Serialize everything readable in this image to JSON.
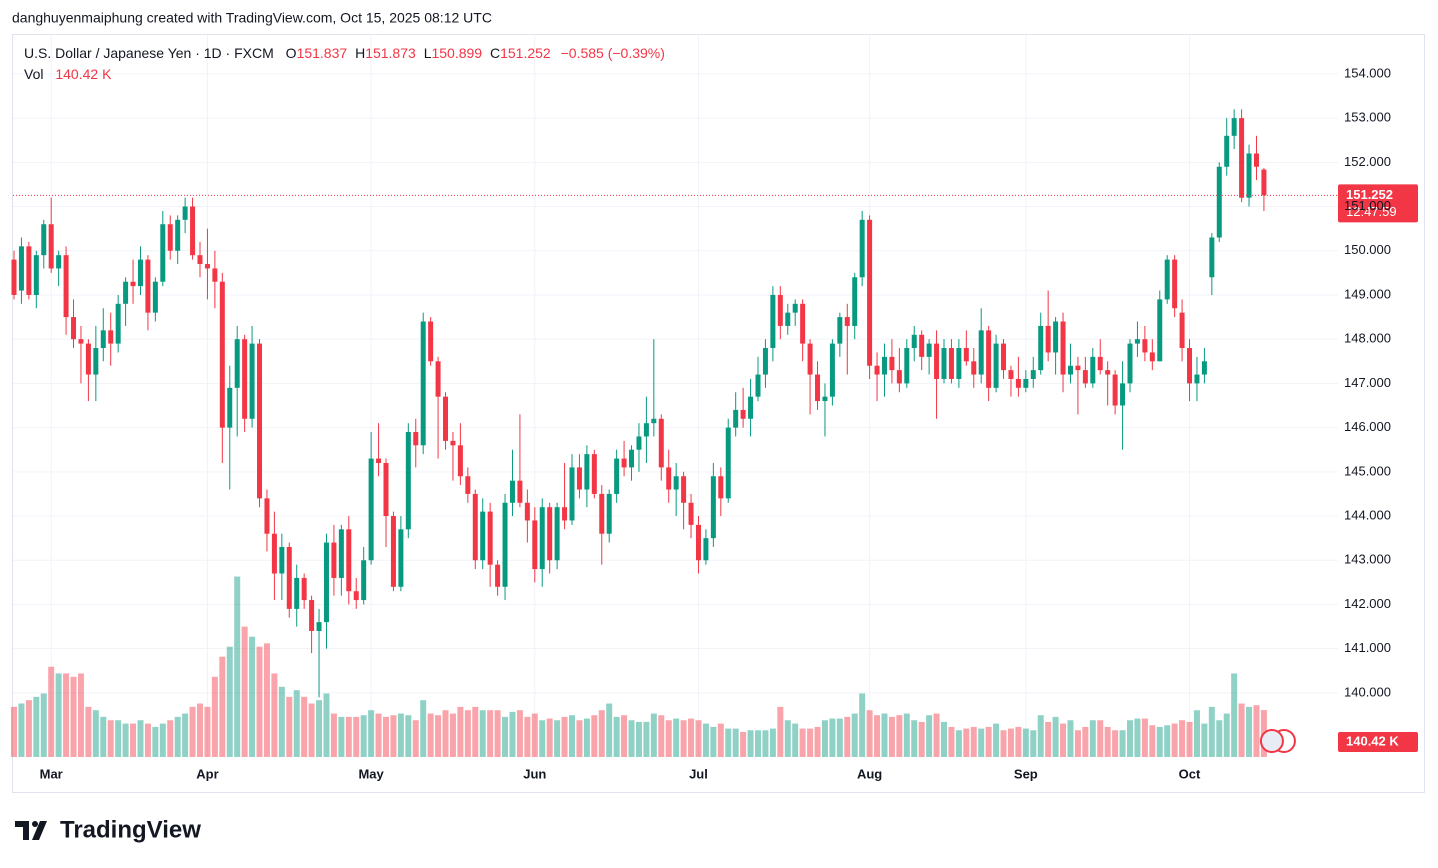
{
  "chart_data": {
    "type": "candlestick",
    "credit": "danghuyenmaiphung created with TradingView.com, Oct 15, 2025 08:12 UTC",
    "title": "U.S. Dollar / Japanese Yen · 1D · FXCM",
    "legend_keys": [
      "O",
      "H",
      "L",
      "C"
    ],
    "change": "−0.585 (−0.39%)",
    "volume_title": "Vol",
    "volume_label": "140.42 K",
    "countdown": "12:47:59",
    "logo": "TradingView",
    "up_color": "#089981",
    "down_color": "#f23645",
    "grid": true,
    "ylim": [
      138.55,
      154.88
    ],
    "yticks": [
      {
        "value": 140,
        "label": "140.000"
      },
      {
        "value": 141,
        "label": "141.000"
      },
      {
        "value": 142,
        "label": "142.000"
      },
      {
        "value": 143,
        "label": "143.000"
      },
      {
        "value": 144,
        "label": "144.000"
      },
      {
        "value": 145,
        "label": "145.000"
      },
      {
        "value": 146,
        "label": "146.000"
      },
      {
        "value": 147,
        "label": "147.000"
      },
      {
        "value": 148,
        "label": "148.000"
      },
      {
        "value": 149,
        "label": "149.000"
      },
      {
        "value": 150,
        "label": "150.000"
      },
      {
        "value": 151,
        "label": "151.000"
      },
      {
        "value": 152,
        "label": "152.000"
      },
      {
        "value": 153,
        "label": "153.000"
      },
      {
        "value": 154,
        "label": "154.000"
      }
    ],
    "volume_lim": [
      0,
      2160
    ],
    "categories": [
      null,
      null,
      null,
      null,
      null,
      "Mar",
      null,
      null,
      null,
      null,
      null,
      null,
      null,
      null,
      null,
      null,
      null,
      null,
      null,
      null,
      null,
      null,
      null,
      null,
      null,
      null,
      "Apr",
      null,
      null,
      null,
      null,
      null,
      null,
      null,
      null,
      null,
      null,
      null,
      null,
      null,
      null,
      null,
      null,
      null,
      null,
      null,
      null,
      null,
      "May",
      null,
      null,
      null,
      null,
      null,
      null,
      null,
      null,
      null,
      null,
      null,
      null,
      null,
      null,
      null,
      null,
      null,
      null,
      null,
      null,
      null,
      "Jun",
      null,
      null,
      null,
      null,
      null,
      null,
      null,
      null,
      null,
      null,
      null,
      null,
      null,
      null,
      null,
      null,
      null,
      null,
      null,
      null,
      null,
      "Jul",
      null,
      null,
      null,
      null,
      null,
      null,
      null,
      null,
      null,
      null,
      null,
      null,
      null,
      null,
      null,
      null,
      null,
      null,
      null,
      null,
      null,
      null,
      "Aug",
      null,
      null,
      null,
      null,
      null,
      null,
      null,
      null,
      null,
      null,
      null,
      null,
      null,
      null,
      null,
      null,
      null,
      null,
      null,
      null,
      "Sep",
      null,
      null,
      null,
      null,
      null,
      null,
      null,
      null,
      null,
      null,
      null,
      null,
      null,
      null,
      null,
      null,
      null,
      null,
      null,
      null,
      null,
      "Oct",
      null,
      null,
      null,
      null,
      null,
      null,
      null,
      null,
      null,
      null
    ],
    "ohlc": [
      [
        149.8,
        150.0,
        148.9,
        149.0
      ],
      [
        149.1,
        150.3,
        148.8,
        150.1
      ],
      [
        150.1,
        150.2,
        148.9,
        149.0
      ],
      [
        149.0,
        150.0,
        148.7,
        149.9
      ],
      [
        149.9,
        150.7,
        149.6,
        150.6
      ],
      [
        150.6,
        151.2,
        149.5,
        149.6
      ],
      [
        149.6,
        150.0,
        149.2,
        149.9
      ],
      [
        149.9,
        150.1,
        148.1,
        148.5
      ],
      [
        148.5,
        148.9,
        147.8,
        148.0
      ],
      [
        148.0,
        148.3,
        147.0,
        147.9
      ],
      [
        147.9,
        148.0,
        146.6,
        147.2
      ],
      [
        147.2,
        148.3,
        146.6,
        147.8
      ],
      [
        147.8,
        148.7,
        147.5,
        148.2
      ],
      [
        148.2,
        148.6,
        147.4,
        147.9
      ],
      [
        147.9,
        149.0,
        147.7,
        148.8
      ],
      [
        148.8,
        149.4,
        148.3,
        149.3
      ],
      [
        149.3,
        149.8,
        148.8,
        149.2
      ],
      [
        149.2,
        150.1,
        149.0,
        149.8
      ],
      [
        149.8,
        149.9,
        148.2,
        148.6
      ],
      [
        148.6,
        149.4,
        148.4,
        149.3
      ],
      [
        149.3,
        150.9,
        149.2,
        150.6
      ],
      [
        150.6,
        150.8,
        149.8,
        150.0
      ],
      [
        150.0,
        150.8,
        149.7,
        150.7
      ],
      [
        150.7,
        151.2,
        150.4,
        151.0
      ],
      [
        151.0,
        151.2,
        149.8,
        149.9
      ],
      [
        149.9,
        150.2,
        149.4,
        149.7
      ],
      [
        149.7,
        150.5,
        148.9,
        149.6
      ],
      [
        149.6,
        150.0,
        148.7,
        149.3
      ],
      [
        149.3,
        149.5,
        145.2,
        146.0
      ],
      [
        146.0,
        147.4,
        144.6,
        146.9
      ],
      [
        146.9,
        148.3,
        145.8,
        148.0
      ],
      [
        148.0,
        148.1,
        145.9,
        146.2
      ],
      [
        146.2,
        148.3,
        146.0,
        147.9
      ],
      [
        147.9,
        148.0,
        144.2,
        144.4
      ],
      [
        144.4,
        144.6,
        143.2,
        143.6
      ],
      [
        143.6,
        144.1,
        142.1,
        142.7
      ],
      [
        142.7,
        143.6,
        142.1,
        143.3
      ],
      [
        143.3,
        143.4,
        141.7,
        141.9
      ],
      [
        141.9,
        142.9,
        141.5,
        142.6
      ],
      [
        142.6,
        142.7,
        141.9,
        142.1
      ],
      [
        142.1,
        142.2,
        140.9,
        141.4
      ],
      [
        141.4,
        141.9,
        139.9,
        141.6
      ],
      [
        141.6,
        143.6,
        141.0,
        143.4
      ],
      [
        143.4,
        143.8,
        142.2,
        142.6
      ],
      [
        142.6,
        143.8,
        142.2,
        143.7
      ],
      [
        143.7,
        144.0,
        142.0,
        142.3
      ],
      [
        142.3,
        142.6,
        141.9,
        142.1
      ],
      [
        142.1,
        143.3,
        142.0,
        143.0
      ],
      [
        143.0,
        145.9,
        142.9,
        145.3
      ],
      [
        145.3,
        146.1,
        144.9,
        145.2
      ],
      [
        145.2,
        145.3,
        143.3,
        144.0
      ],
      [
        144.0,
        144.1,
        142.3,
        142.4
      ],
      [
        142.4,
        144.0,
        142.3,
        143.7
      ],
      [
        143.7,
        146.1,
        143.5,
        145.9
      ],
      [
        145.9,
        146.2,
        145.1,
        145.6
      ],
      [
        145.6,
        148.6,
        145.4,
        148.4
      ],
      [
        148.4,
        148.5,
        147.4,
        147.5
      ],
      [
        147.5,
        147.6,
        145.3,
        146.7
      ],
      [
        146.7,
        146.8,
        145.5,
        145.7
      ],
      [
        145.7,
        145.9,
        144.8,
        145.6
      ],
      [
        145.6,
        146.1,
        144.7,
        144.9
      ],
      [
        144.9,
        145.1,
        144.3,
        144.5
      ],
      [
        144.5,
        144.6,
        142.8,
        143.0
      ],
      [
        143.0,
        144.4,
        142.8,
        144.1
      ],
      [
        144.1,
        144.3,
        142.4,
        142.9
      ],
      [
        142.9,
        143.0,
        142.2,
        142.4
      ],
      [
        142.4,
        144.5,
        142.1,
        144.3
      ],
      [
        144.3,
        145.5,
        144.0,
        144.8
      ],
      [
        144.8,
        146.3,
        144.2,
        144.3
      ],
      [
        144.3,
        144.6,
        143.4,
        143.9
      ],
      [
        143.9,
        144.2,
        142.5,
        142.8
      ],
      [
        142.8,
        144.4,
        142.4,
        144.2
      ],
      [
        144.2,
        144.3,
        142.7,
        143.0
      ],
      [
        143.0,
        144.3,
        142.8,
        144.2
      ],
      [
        144.2,
        145.2,
        143.7,
        143.9
      ],
      [
        143.9,
        145.4,
        143.8,
        145.1
      ],
      [
        145.1,
        145.4,
        144.4,
        144.6
      ],
      [
        144.6,
        145.6,
        144.2,
        145.4
      ],
      [
        145.4,
        145.5,
        144.4,
        144.5
      ],
      [
        144.5,
        144.7,
        142.9,
        143.6
      ],
      [
        143.6,
        144.6,
        143.4,
        144.5
      ],
      [
        144.5,
        145.5,
        144.3,
        145.3
      ],
      [
        145.3,
        145.7,
        144.9,
        145.1
      ],
      [
        145.1,
        145.6,
        144.8,
        145.5
      ],
      [
        145.5,
        146.1,
        145.0,
        145.8
      ],
      [
        145.8,
        146.7,
        145.2,
        146.1
      ],
      [
        146.1,
        148.0,
        145.8,
        146.2
      ],
      [
        146.2,
        146.3,
        144.8,
        145.1
      ],
      [
        145.1,
        145.5,
        144.3,
        144.6
      ],
      [
        144.6,
        145.2,
        144.0,
        144.9
      ],
      [
        144.9,
        145.0,
        143.7,
        144.3
      ],
      [
        144.3,
        144.5,
        143.5,
        143.8
      ],
      [
        143.8,
        144.0,
        142.7,
        143.0
      ],
      [
        143.0,
        143.7,
        142.9,
        143.5
      ],
      [
        143.5,
        145.2,
        143.3,
        144.9
      ],
      [
        144.9,
        145.1,
        144.0,
        144.4
      ],
      [
        144.4,
        146.2,
        144.3,
        146.0
      ],
      [
        146.0,
        146.8,
        145.8,
        146.4
      ],
      [
        146.4,
        146.9,
        146.0,
        146.2
      ],
      [
        146.2,
        147.1,
        145.8,
        146.7
      ],
      [
        146.7,
        147.6,
        146.6,
        147.2
      ],
      [
        147.2,
        148.0,
        146.9,
        147.8
      ],
      [
        147.8,
        149.2,
        147.5,
        149.0
      ],
      [
        149.0,
        149.2,
        148.0,
        148.3
      ],
      [
        148.3,
        148.8,
        148.1,
        148.6
      ],
      [
        148.6,
        148.9,
        148.3,
        148.8
      ],
      [
        148.8,
        148.9,
        147.5,
        147.9
      ],
      [
        147.9,
        148.0,
        146.3,
        147.2
      ],
      [
        147.2,
        147.5,
        146.4,
        146.6
      ],
      [
        146.6,
        147.0,
        145.8,
        146.7
      ],
      [
        146.7,
        148.0,
        146.5,
        147.9
      ],
      [
        147.9,
        148.6,
        147.6,
        148.5
      ],
      [
        148.5,
        148.8,
        147.2,
        148.3
      ],
      [
        148.3,
        149.5,
        148.0,
        149.4
      ],
      [
        149.4,
        150.9,
        149.2,
        150.7
      ],
      [
        150.7,
        150.8,
        147.1,
        147.4
      ],
      [
        147.4,
        147.7,
        146.6,
        147.2
      ],
      [
        147.2,
        147.9,
        146.7,
        147.6
      ],
      [
        147.6,
        148.0,
        147.0,
        147.3
      ],
      [
        147.3,
        147.8,
        146.8,
        147.0
      ],
      [
        147.0,
        148.0,
        146.9,
        147.8
      ],
      [
        147.8,
        148.3,
        147.5,
        148.1
      ],
      [
        148.1,
        148.2,
        147.3,
        147.6
      ],
      [
        147.6,
        148.0,
        147.2,
        147.9
      ],
      [
        147.9,
        148.2,
        146.2,
        147.1
      ],
      [
        147.1,
        148.0,
        147.0,
        147.8
      ],
      [
        147.8,
        148.0,
        147.0,
        147.1
      ],
      [
        147.1,
        148.0,
        146.9,
        147.8
      ],
      [
        147.8,
        148.2,
        147.4,
        147.5
      ],
      [
        147.5,
        147.8,
        146.9,
        147.2
      ],
      [
        147.2,
        148.7,
        147.0,
        148.2
      ],
      [
        148.2,
        148.3,
        146.6,
        146.9
      ],
      [
        146.9,
        148.1,
        146.8,
        147.9
      ],
      [
        147.9,
        148.0,
        147.1,
        147.3
      ],
      [
        147.3,
        147.4,
        146.7,
        147.1
      ],
      [
        147.1,
        147.6,
        146.7,
        146.9
      ],
      [
        146.9,
        147.3,
        146.8,
        147.1
      ],
      [
        147.1,
        147.6,
        146.9,
        147.3
      ],
      [
        147.3,
        148.6,
        147.2,
        148.3
      ],
      [
        148.3,
        149.1,
        147.5,
        147.7
      ],
      [
        147.7,
        148.5,
        147.2,
        148.4
      ],
      [
        148.4,
        148.6,
        146.8,
        147.2
      ],
      [
        147.2,
        147.9,
        147.0,
        147.4
      ],
      [
        147.4,
        147.6,
        146.3,
        147.3
      ],
      [
        147.3,
        147.6,
        146.9,
        147.0
      ],
      [
        147.0,
        147.8,
        146.9,
        147.6
      ],
      [
        147.6,
        148.0,
        147.2,
        147.3
      ],
      [
        147.3,
        147.5,
        146.5,
        147.2
      ],
      [
        147.2,
        147.3,
        146.3,
        146.5
      ],
      [
        146.5,
        147.5,
        145.5,
        147.0
      ],
      [
        147.0,
        148.0,
        146.8,
        147.9
      ],
      [
        147.9,
        148.4,
        147.6,
        148.0
      ],
      [
        148.0,
        148.3,
        147.5,
        147.7
      ],
      [
        147.7,
        148.0,
        147.3,
        147.5
      ],
      [
        147.5,
        149.1,
        147.5,
        148.9
      ],
      [
        148.9,
        149.9,
        148.8,
        149.8
      ],
      [
        149.8,
        149.9,
        148.5,
        148.7
      ],
      [
        148.6,
        148.9,
        147.5,
        147.8
      ],
      [
        147.8,
        148.0,
        146.6,
        147.0
      ],
      [
        147.0,
        147.6,
        146.6,
        147.2
      ],
      [
        147.2,
        147.8,
        147.0,
        147.5
      ],
      [
        149.4,
        150.4,
        149.0,
        150.3
      ],
      [
        150.3,
        152.0,
        150.2,
        151.9
      ],
      [
        151.9,
        153.0,
        151.7,
        152.6
      ],
      [
        152.6,
        153.2,
        152.3,
        153.0
      ],
      [
        153.0,
        153.2,
        151.1,
        151.2
      ],
      [
        151.2,
        152.4,
        151.0,
        152.2
      ],
      [
        152.2,
        152.6,
        151.6,
        151.9
      ],
      [
        151.837,
        151.873,
        150.899,
        151.252
      ]
    ],
    "volume": [
      150,
      160,
      170,
      180,
      190,
      270,
      250,
      250,
      240,
      250,
      150,
      140,
      120,
      110,
      110,
      100,
      100,
      110,
      100,
      90,
      100,
      110,
      120,
      130,
      150,
      160,
      150,
      240,
      300,
      330,
      540,
      390,
      360,
      330,
      340,
      250,
      210,
      180,
      200,
      180,
      160,
      170,
      190,
      130,
      120,
      120,
      120,
      125,
      140,
      130,
      120,
      125,
      130,
      125,
      110,
      170,
      130,
      125,
      140,
      130,
      150,
      140,
      150,
      140,
      140,
      140,
      120,
      135,
      140,
      120,
      130,
      110,
      115,
      110,
      120,
      125,
      110,
      115,
      125,
      140,
      160,
      120,
      125,
      110,
      105,
      105,
      130,
      125,
      110,
      115,
      110,
      115,
      110,
      100,
      90,
      100,
      85,
      85,
      75,
      80,
      80,
      80,
      85,
      150,
      110,
      100,
      85,
      85,
      90,
      110,
      115,
      115,
      120,
      130,
      190,
      140,
      125,
      130,
      120,
      125,
      130,
      110,
      105,
      125,
      130,
      105,
      90,
      80,
      85,
      90,
      85,
      90,
      100,
      80,
      85,
      90,
      85,
      80,
      125,
      105,
      120,
      100,
      110,
      80,
      90,
      110,
      110,
      90,
      80,
      80,
      110,
      115,
      115,
      95,
      90,
      95,
      100,
      110,
      105,
      140,
      100,
      150,
      110,
      130,
      250,
      160,
      150,
      155,
      140.42
    ]
  }
}
